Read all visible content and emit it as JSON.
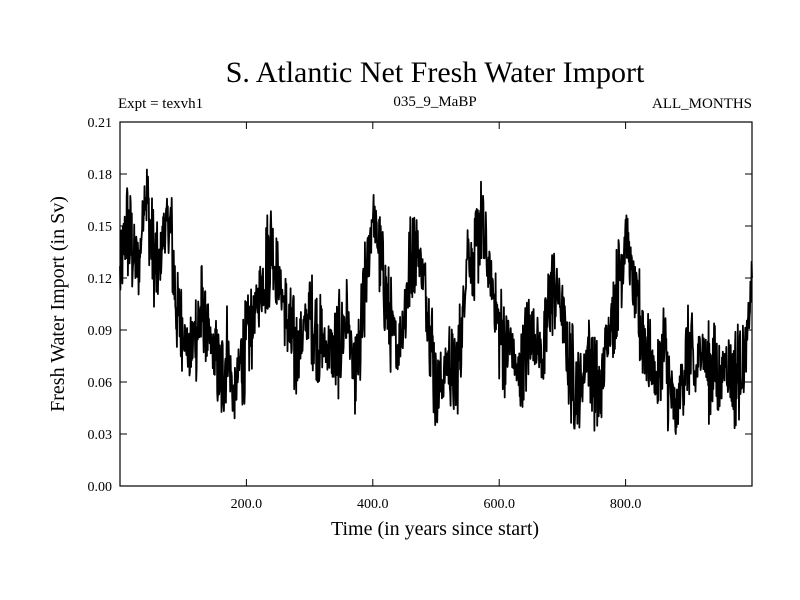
{
  "chart_data": {
    "type": "line",
    "title": "S. Atlantic Net Fresh Water Import",
    "subtitle_left": "Expt = texvh1",
    "subtitle_center": "035_9_MaBP",
    "subtitle_right": "ALL_MONTHS",
    "xlabel": "Time (in years since start)",
    "ylabel": "Fresh Water Import (in Sv)",
    "xlim": [
      0,
      1000
    ],
    "ylim": [
      0,
      0.21
    ],
    "x_ticks": [
      200,
      400,
      600,
      800
    ],
    "x_tick_labels": [
      "200.0",
      "400.0",
      "600.0",
      "800.0"
    ],
    "y_ticks": [
      0,
      0.03,
      0.06,
      0.09,
      0.12,
      0.15,
      0.18,
      0.21
    ],
    "y_tick_labels": [
      "0.00",
      "0.03",
      "0.06",
      "0.09",
      "0.12",
      "0.15",
      "0.18",
      "0.21"
    ],
    "series": [
      {
        "name": "Net Fresh Water Import",
        "x": [
          0,
          10,
          20,
          30,
          40,
          50,
          60,
          70,
          80,
          90,
          100,
          110,
          120,
          130,
          140,
          150,
          160,
          170,
          180,
          190,
          200,
          210,
          220,
          230,
          240,
          250,
          260,
          270,
          280,
          290,
          300,
          310,
          320,
          330,
          340,
          350,
          360,
          370,
          380,
          390,
          400,
          410,
          420,
          430,
          440,
          450,
          460,
          470,
          480,
          490,
          500,
          510,
          520,
          530,
          540,
          550,
          560,
          570,
          580,
          590,
          600,
          610,
          620,
          630,
          640,
          650,
          660,
          670,
          680,
          690,
          700,
          710,
          720,
          730,
          740,
          750,
          760,
          770,
          780,
          790,
          800,
          810,
          820,
          830,
          840,
          850,
          860,
          870,
          880,
          890,
          900,
          910,
          920,
          930,
          940,
          950,
          960,
          970,
          980,
          990,
          1000
        ],
        "values": [
          0.12,
          0.15,
          0.135,
          0.125,
          0.175,
          0.14,
          0.12,
          0.15,
          0.15,
          0.1,
          0.09,
          0.075,
          0.09,
          0.1,
          0.085,
          0.075,
          0.06,
          0.08,
          0.05,
          0.07,
          0.08,
          0.095,
          0.11,
          0.125,
          0.14,
          0.12,
          0.105,
          0.085,
          0.075,
          0.09,
          0.1,
          0.09,
          0.08,
          0.08,
          0.075,
          0.085,
          0.1,
          0.06,
          0.08,
          0.12,
          0.16,
          0.135,
          0.11,
          0.09,
          0.08,
          0.1,
          0.13,
          0.14,
          0.12,
          0.095,
          0.055,
          0.06,
          0.075,
          0.06,
          0.085,
          0.14,
          0.12,
          0.155,
          0.13,
          0.115,
          0.09,
          0.08,
          0.08,
          0.06,
          0.075,
          0.09,
          0.085,
          0.07,
          0.11,
          0.115,
          0.1,
          0.07,
          0.06,
          0.055,
          0.08,
          0.06,
          0.05,
          0.085,
          0.1,
          0.12,
          0.15,
          0.12,
          0.1,
          0.085,
          0.07,
          0.06,
          0.08,
          0.055,
          0.04,
          0.065,
          0.08,
          0.06,
          0.085,
          0.065,
          0.07,
          0.06,
          0.075,
          0.06,
          0.07,
          0.075,
          0.12
        ]
      }
    ]
  }
}
